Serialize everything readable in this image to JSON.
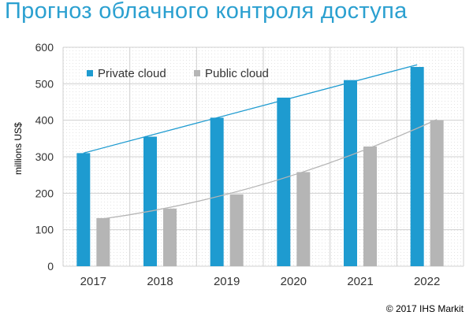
{
  "title": "Прогноз облачного контроля доступа",
  "footer": "© 2017 IHS Markit",
  "chart_data": {
    "type": "bar",
    "title": "Прогноз облачного контроля доступа",
    "xlabel": "",
    "ylabel": "millions US$",
    "ylim": [
      0,
      600
    ],
    "yticks": [
      0,
      100,
      200,
      300,
      400,
      500,
      600
    ],
    "grid": true,
    "legend_position": "top-left",
    "categories": [
      "2017",
      "2018",
      "2019",
      "2020",
      "2021",
      "2022"
    ],
    "series": [
      {
        "name": "Private cloud",
        "color": "#1E9BD0",
        "values": [
          310,
          355,
          407,
          462,
          510,
          546
        ]
      },
      {
        "name": "Public cloud",
        "color": "#B5B5B5",
        "values": [
          132,
          158,
          197,
          258,
          328,
          400
        ]
      }
    ],
    "trendlines": [
      {
        "series": "Private cloud",
        "color": "#1E9BD0",
        "from": 310,
        "to": 552
      },
      {
        "series": "Public cloud",
        "color": "#B5B5B5",
        "from": 130,
        "to": 402
      }
    ]
  }
}
